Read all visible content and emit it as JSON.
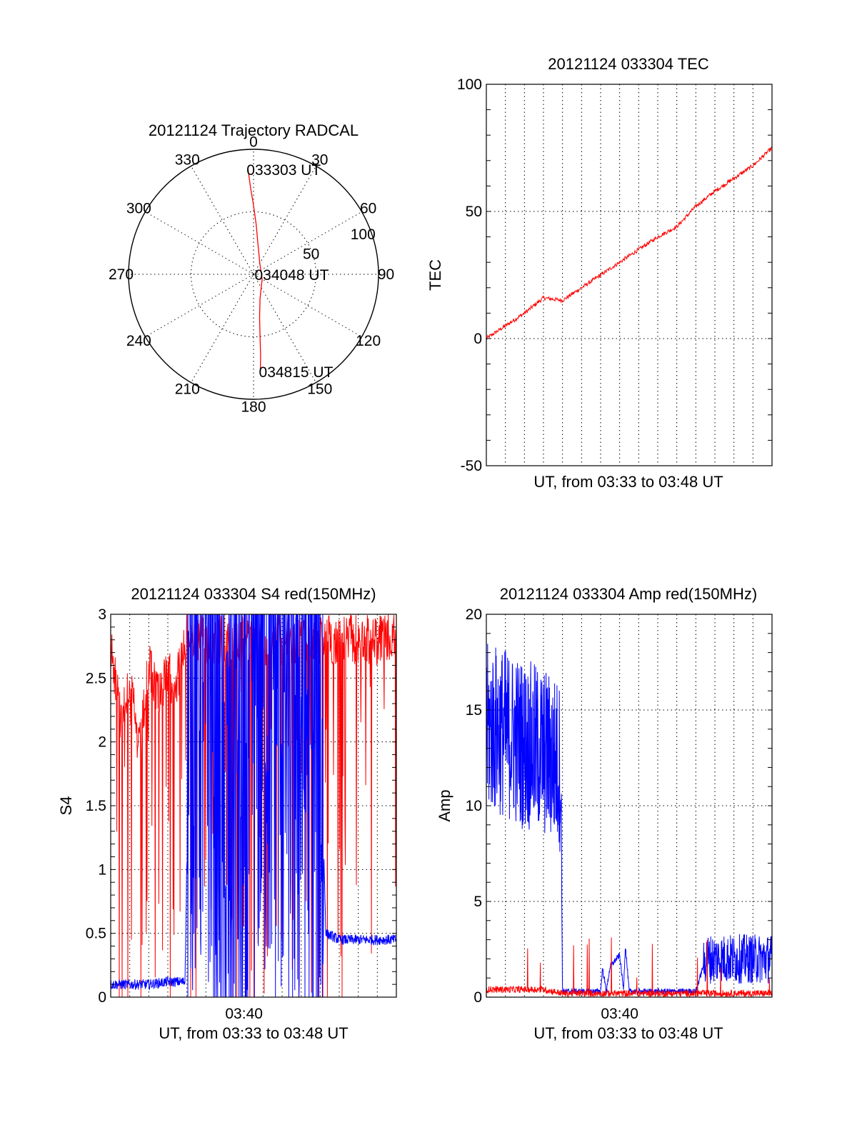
{
  "colors": {
    "red": "#ff0000",
    "blue": "#0000ff",
    "axis": "#000000",
    "background": "#ffffff"
  },
  "chart_data": [
    {
      "type": "scatter",
      "subtype": "polar",
      "title": "20121124 Trajectory RADCAL",
      "azimuth_labels": [
        "0",
        "30",
        "60",
        "90",
        "120",
        "150",
        "180",
        "210",
        "240",
        "270",
        "300",
        "330"
      ],
      "radial_ticks": [
        50,
        100
      ],
      "radial_tick_labels": [
        "50",
        "100"
      ],
      "rmax": 100,
      "grid": true,
      "trajectory": {
        "color": "#ff0000",
        "points": [
          {
            "az": 357,
            "r": 84
          },
          {
            "az": 358,
            "r": 70
          },
          {
            "az": 0,
            "r": 55
          },
          {
            "az": 3,
            "r": 40
          },
          {
            "az": 8,
            "r": 25
          },
          {
            "az": 30,
            "r": 10
          },
          {
            "az": 120,
            "r": 8
          },
          {
            "az": 165,
            "r": 20
          },
          {
            "az": 172,
            "r": 35
          },
          {
            "az": 174,
            "r": 50
          },
          {
            "az": 175,
            "r": 65
          },
          {
            "az": 176,
            "r": 78
          }
        ]
      },
      "annotations": [
        {
          "text": "033303 UT",
          "az": 357,
          "r": 84
        },
        {
          "text": "034048 UT",
          "az": 90,
          "r": 2
        },
        {
          "text": "034815 UT",
          "az": 176,
          "r": 78
        }
      ]
    },
    {
      "type": "line",
      "title": "20121124 033304 TEC",
      "xlabel": "UT, from 03:33 to 03:48 UT",
      "ylabel": "TEC",
      "xlim": [
        0,
        15
      ],
      "ylim": [
        -50,
        100
      ],
      "yticks": [
        -50,
        0,
        50,
        100
      ],
      "grid": true,
      "series": [
        {
          "color": "#ff0000",
          "x": [
            0,
            1,
            2,
            3,
            4,
            5,
            6,
            7,
            8,
            9,
            10,
            11,
            12,
            13,
            14,
            15
          ],
          "y": [
            0,
            5,
            10,
            16,
            15,
            20,
            25,
            30,
            35,
            40,
            44,
            52,
            58,
            63,
            68,
            75
          ]
        }
      ]
    },
    {
      "type": "line",
      "title": "20121124 033304 S4 red(150MHz)",
      "xlabel": "UT, from 03:33 to 03:48 UT",
      "ylabel": "S4",
      "xlim": [
        0,
        15
      ],
      "ylim": [
        0,
        3
      ],
      "yticks": [
        0,
        0.5,
        1,
        1.5,
        2,
        2.5,
        3
      ],
      "xtick_labels": [
        {
          "x": 7,
          "label": "03:40"
        }
      ],
      "grid": true,
      "series": [
        {
          "color": "#ff0000",
          "x": [
            0,
            0.5,
            1,
            1.5,
            2,
            2.5,
            3,
            3.5,
            4,
            5,
            6,
            7,
            8,
            9,
            10,
            11,
            12,
            13,
            14,
            15
          ],
          "y": [
            3,
            2.4,
            2.7,
            2.1,
            2.8,
            2.6,
            2.7,
            2.7,
            3,
            3,
            3,
            3,
            3,
            3,
            3,
            3,
            3,
            3,
            3,
            3
          ]
        },
        {
          "color": "#0000ff",
          "x": [
            0,
            1,
            2,
            3,
            3.9,
            4.2,
            5,
            5.5,
            6,
            6.5,
            7,
            7.5,
            8,
            9,
            10,
            11,
            11.3,
            12,
            13,
            14,
            15
          ],
          "y": [
            0.1,
            0.1,
            0.1,
            0.12,
            0.12,
            3,
            2.9,
            2.7,
            0.4,
            2.5,
            0.9,
            2.8,
            2.9,
            2.7,
            2.3,
            2.2,
            0.5,
            0.45,
            0.45,
            0.45,
            0.45
          ]
        }
      ]
    },
    {
      "type": "line",
      "title": "20121124 033304 Amp red(150MHz)",
      "xlabel": "UT, from 03:33 to 03:48 UT",
      "ylabel": "Amp",
      "xlim": [
        0,
        15
      ],
      "ylim": [
        0,
        20
      ],
      "yticks": [
        0,
        5,
        10,
        15,
        20
      ],
      "xtick_labels": [
        {
          "x": 7,
          "label": "03:40"
        }
      ],
      "grid": true,
      "series": [
        {
          "color": "#0000ff",
          "x": [
            0,
            0.5,
            1,
            1.5,
            2,
            2.5,
            3,
            3.5,
            3.9,
            4.0,
            5,
            6,
            6.1,
            6.3,
            6.5,
            7,
            7.2,
            7.3,
            7.5,
            8,
            9,
            10,
            11,
            11.5,
            12,
            13,
            14,
            15
          ],
          "y": [
            14,
            14,
            13.8,
            13.5,
            13.2,
            13,
            12.8,
            12.5,
            12,
            0.3,
            0.3,
            0.3,
            1.5,
            0.3,
            1.6,
            2.2,
            0.4,
            2.7,
            0.3,
            0.3,
            0.3,
            0.3,
            0.3,
            2.0,
            2.0,
            2.0,
            2.0,
            2.0
          ]
        },
        {
          "color": "#ff0000",
          "x": [
            0,
            1,
            2,
            3,
            4,
            5,
            6,
            7,
            8,
            9,
            10,
            11,
            12,
            13,
            14,
            15
          ],
          "y": [
            0.4,
            0.4,
            0.4,
            0.4,
            0.2,
            0.2,
            0.2,
            0.2,
            0.2,
            0.2,
            0.2,
            0.2,
            0.2,
            0.2,
            0.2,
            0.2
          ]
        }
      ]
    }
  ]
}
